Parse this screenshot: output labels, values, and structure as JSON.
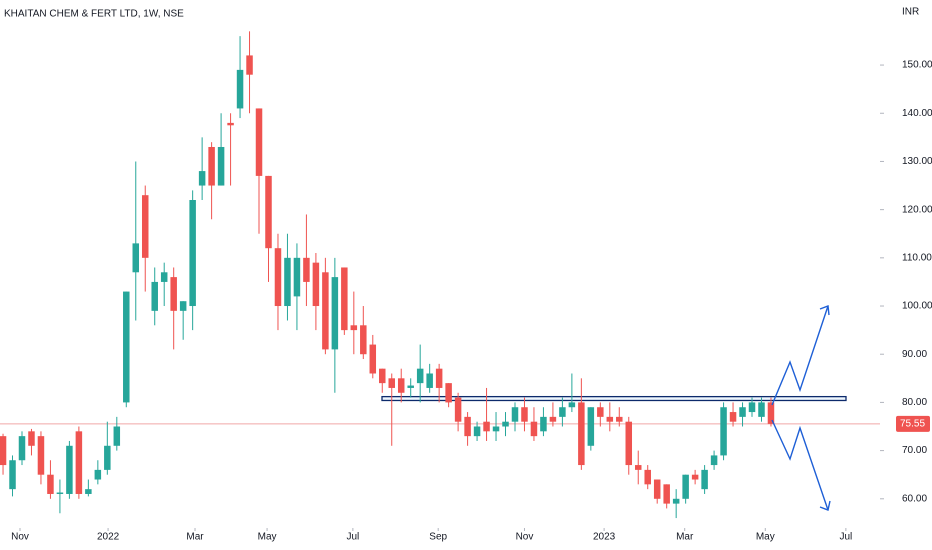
{
  "chart_data": {
    "type": "candlestick",
    "title": "KHAITAN CHEM & FERT LTD, 1W, NSE",
    "y_axis_label": "INR",
    "up_color": "#26a69a",
    "down_color": "#ef5350",
    "grid": false,
    "ylim": [
      55.6,
      163.5
    ],
    "yticks": [
      {
        "value": 60,
        "label": "60.00"
      },
      {
        "value": 70,
        "label": "70.00"
      },
      {
        "value": 80,
        "label": "80.00"
      },
      {
        "value": 90,
        "label": "90.00"
      },
      {
        "value": 100,
        "label": "100.00"
      },
      {
        "value": 110,
        "label": "110.00"
      },
      {
        "value": 120,
        "label": "120.00"
      },
      {
        "value": 130,
        "label": "130.00"
      },
      {
        "value": 140,
        "label": "140.00"
      },
      {
        "value": 150,
        "label": "150.00"
      }
    ],
    "xlim": [
      -0.32,
      92.5
    ],
    "xticks": [
      {
        "value": 1.79,
        "label": "Nov"
      },
      {
        "value": 11.08,
        "label": "2022"
      },
      {
        "value": 20.25,
        "label": "Mar"
      },
      {
        "value": 27.85,
        "label": "May"
      },
      {
        "value": 36.9,
        "label": "Jul"
      },
      {
        "value": 45.9,
        "label": "Sep"
      },
      {
        "value": 55.0,
        "label": "Nov"
      },
      {
        "value": 63.4,
        "label": "2023"
      },
      {
        "value": 71.9,
        "label": "Mar"
      },
      {
        "value": 80.4,
        "label": "May"
      },
      {
        "value": 88.9,
        "label": "Jul"
      }
    ],
    "open": [
      73,
      62,
      68,
      74,
      73,
      65,
      61,
      61,
      74,
      61,
      64,
      66,
      71,
      80,
      107,
      123,
      99,
      105,
      106,
      99,
      100,
      125,
      133,
      125,
      138,
      141,
      152,
      141,
      127,
      112,
      100,
      102,
      110,
      109,
      107,
      91,
      108,
      96,
      96,
      92,
      87,
      85,
      85,
      83,
      84,
      83,
      87,
      84,
      81,
      77,
      73,
      76,
      74,
      75,
      76,
      79,
      76,
      74,
      77,
      77,
      79,
      80,
      71,
      79,
      77,
      77,
      76,
      67,
      66,
      64,
      63,
      59,
      60,
      65,
      62,
      67,
      69,
      78,
      77,
      78,
      77,
      80
    ],
    "high": [
      73.5,
      69,
      74,
      74.5,
      74,
      68,
      64,
      72,
      75,
      64,
      68,
      76,
      77,
      103,
      130,
      125,
      108,
      109,
      108,
      101,
      124,
      135,
      134,
      140,
      140,
      156,
      157,
      141,
      127,
      115,
      115,
      113,
      119,
      111,
      110,
      110,
      108,
      103,
      100,
      94,
      87,
      86,
      87,
      85,
      92,
      88,
      88,
      84,
      82,
      78,
      76,
      83,
      78,
      78,
      80,
      81,
      79,
      79,
      80,
      81,
      86,
      85,
      79,
      80,
      80,
      79,
      77,
      70,
      67,
      64,
      63,
      62,
      65,
      66,
      67,
      70,
      80,
      80,
      80,
      81,
      81,
      81
    ],
    "low": [
      65,
      60.5,
      67,
      69,
      63,
      60,
      57,
      60,
      60,
      60.5,
      63,
      65,
      70,
      79,
      97,
      103,
      96,
      100,
      91,
      93,
      95,
      122,
      118,
      125,
      125,
      139,
      140,
      115,
      105,
      95,
      97,
      95,
      100,
      95,
      90,
      82,
      94,
      90,
      89,
      85,
      82,
      71,
      80,
      81,
      80,
      82,
      80,
      79,
      74,
      71,
      72,
      72,
      72,
      73,
      74,
      74,
      72,
      73,
      75,
      75,
      78,
      66,
      70,
      75,
      74,
      75,
      65,
      63,
      62,
      59,
      58,
      56,
      59,
      63,
      61,
      66,
      68,
      75,
      75,
      77,
      76,
      75
    ],
    "close": [
      67,
      68,
      73,
      71,
      65,
      61,
      61.3,
      71,
      61,
      62,
      66,
      71,
      75,
      103,
      113,
      110,
      105,
      107,
      99,
      101,
      122,
      128,
      125,
      133,
      137.5,
      149,
      148,
      127,
      112,
      100,
      110,
      110,
      105,
      100,
      91,
      106,
      95,
      95,
      90,
      86,
      84,
      83,
      82,
      83.5,
      87,
      86,
      83,
      80,
      76,
      73,
      75,
      74,
      75,
      76,
      79,
      76,
      73,
      77,
      76,
      79,
      80,
      67,
      79,
      77,
      76,
      76,
      67,
      66,
      63,
      60,
      59,
      60,
      65,
      64,
      66,
      69,
      79,
      76,
      79,
      80,
      80,
      75.55
    ],
    "last_price": 75.55,
    "zone": [
      80.4,
      81.2
    ]
  }
}
